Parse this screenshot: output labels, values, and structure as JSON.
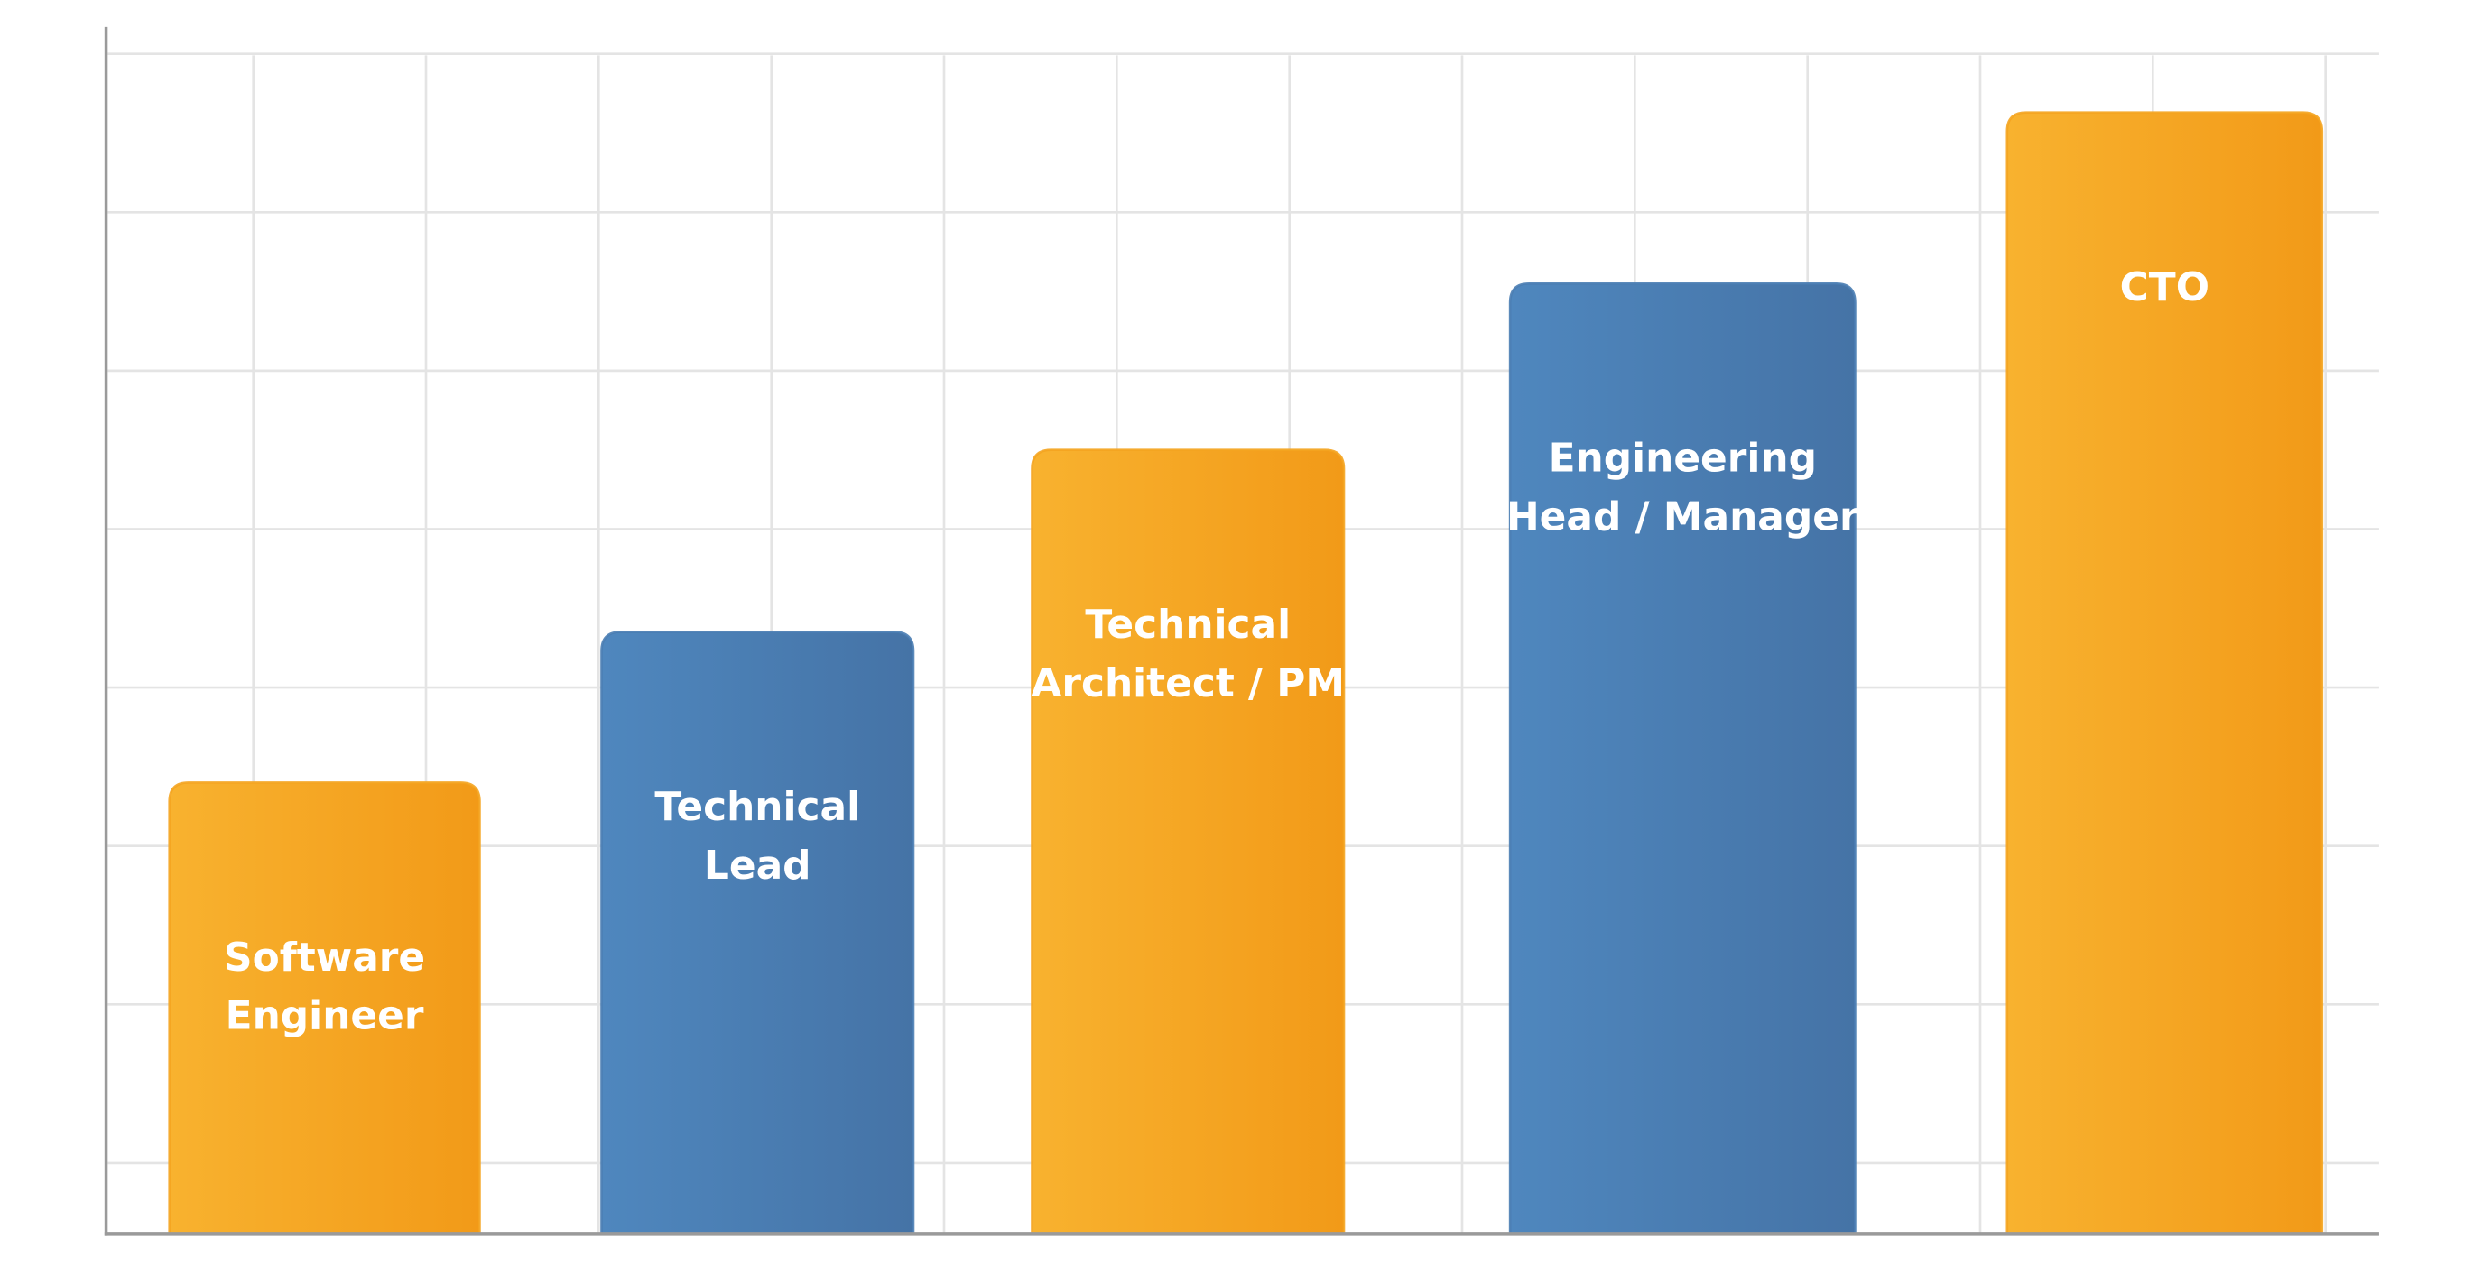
{
  "chart_data": {
    "type": "bar",
    "categories": [
      [
        "Software",
        "Engineer"
      ],
      [
        "Technical",
        "Lead"
      ],
      [
        "Technical",
        "Architect / PM"
      ],
      [
        "Engineering",
        "Head / Manager"
      ],
      [
        "CTO"
      ]
    ],
    "values": [
      2.85,
      3.8,
      4.95,
      6.0,
      7.08
    ],
    "colors": [
      "#f4a420",
      "#4a7db3",
      "#f4a420",
      "#4a7db3",
      "#f4a420"
    ],
    "ylim": [
      0,
      7.62
    ],
    "yticks": [
      0.45,
      1.45,
      2.45,
      3.45,
      4.45,
      5.45,
      6.45,
      7.45
    ],
    "grid": true
  }
}
